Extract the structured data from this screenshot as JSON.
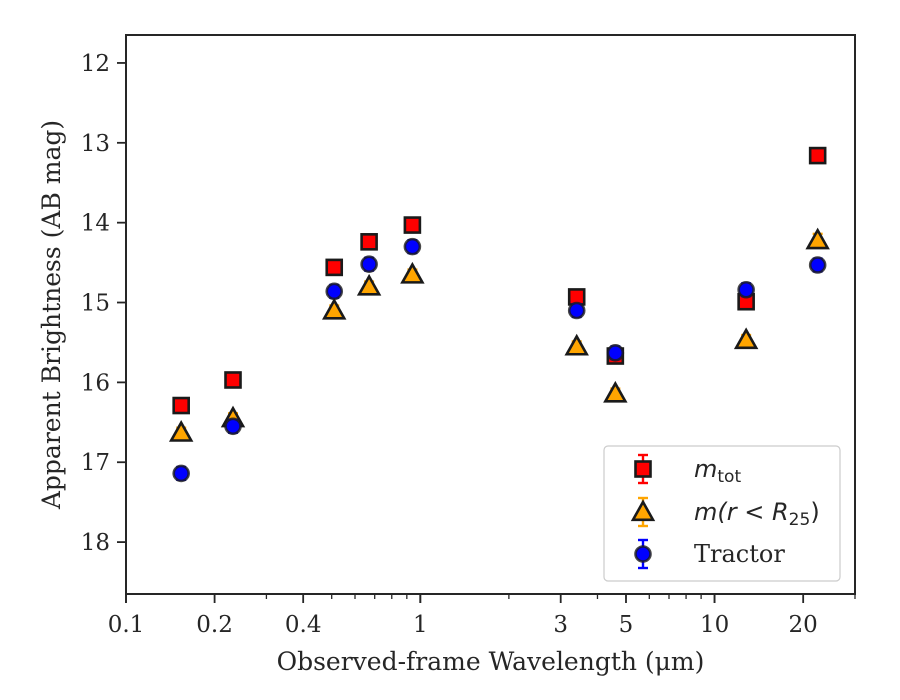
{
  "chart_data": {
    "type": "scatter",
    "title": "",
    "xlabel": "Observed-frame Wavelength (μm)",
    "ylabel": "Apparent Brightness (AB mag)",
    "xscale": "log",
    "xlim": [
      0.1,
      30
    ],
    "ylim": [
      18.65,
      11.65
    ],
    "y_inverted": true,
    "x_ticks": [
      {
        "value": 0.1,
        "label": "0.1"
      },
      {
        "value": 0.2,
        "label": "0.2"
      },
      {
        "value": 0.4,
        "label": "0.4"
      },
      {
        "value": 1,
        "label": "1"
      },
      {
        "value": 3,
        "label": "3"
      },
      {
        "value": 5,
        "label": "5"
      },
      {
        "value": 10,
        "label": "10"
      },
      {
        "value": 20,
        "label": "20"
      }
    ],
    "y_ticks": [
      {
        "value": 12,
        "label": "12"
      },
      {
        "value": 13,
        "label": "13"
      },
      {
        "value": 14,
        "label": "14"
      },
      {
        "value": 15,
        "label": "15"
      },
      {
        "value": 16,
        "label": "16"
      },
      {
        "value": 17,
        "label": "17"
      },
      {
        "value": 18,
        "label": "18"
      }
    ],
    "legend_position": "lower-right",
    "series": [
      {
        "key": "mtot",
        "marker": "square",
        "color": "#ff0000",
        "edge_color": "#1a1a1a",
        "legend": {
          "base": "m",
          "sub": "tot",
          "tail": ""
        },
        "points": [
          {
            "x": 0.154,
            "y": 16.29,
            "err": 0.03
          },
          {
            "x": 0.231,
            "y": 15.97,
            "err": 0.03
          },
          {
            "x": 0.51,
            "y": 14.56,
            "err": 0.03
          },
          {
            "x": 0.67,
            "y": 14.24,
            "err": 0.03
          },
          {
            "x": 0.94,
            "y": 14.03,
            "err": 0.03
          },
          {
            "x": 3.4,
            "y": 14.93,
            "err": 0.03
          },
          {
            "x": 4.6,
            "y": 15.67,
            "err": 0.05
          },
          {
            "x": 12.8,
            "y": 14.99,
            "err": 0.05
          },
          {
            "x": 22.4,
            "y": 13.16,
            "err": 0.03
          }
        ]
      },
      {
        "key": "mr25",
        "marker": "triangle",
        "color": "#ffa500",
        "edge_color": "#1a1a1a",
        "legend": {
          "base": "m",
          "sub": "25",
          "tail": "(r < R"
        },
        "points": [
          {
            "x": 0.154,
            "y": 16.63,
            "err": 0.03
          },
          {
            "x": 0.231,
            "y": 16.45,
            "err": 0.03
          },
          {
            "x": 0.51,
            "y": 15.1,
            "err": 0.03
          },
          {
            "x": 0.67,
            "y": 14.8,
            "err": 0.03
          },
          {
            "x": 0.94,
            "y": 14.65,
            "err": 0.03
          },
          {
            "x": 3.4,
            "y": 15.55,
            "err": 0.03
          },
          {
            "x": 4.6,
            "y": 16.14,
            "err": 0.03
          },
          {
            "x": 12.8,
            "y": 15.47,
            "err": 0.05
          },
          {
            "x": 22.4,
            "y": 14.22,
            "err": 0.08
          }
        ]
      },
      {
        "key": "tractor",
        "marker": "circle",
        "color": "#0000ff",
        "edge_color": "#1a1a1a",
        "legend": {
          "base": "Tractor",
          "sub": "",
          "tail": ""
        },
        "points": [
          {
            "x": 0.154,
            "y": 17.14,
            "err": 0.08
          },
          {
            "x": 0.231,
            "y": 16.55,
            "err": 0.08
          },
          {
            "x": 0.51,
            "y": 14.86,
            "err": 0.08
          },
          {
            "x": 0.67,
            "y": 14.52,
            "err": 0.08
          },
          {
            "x": 0.94,
            "y": 14.3,
            "err": 0.08
          },
          {
            "x": 3.4,
            "y": 15.1,
            "err": 0.08
          },
          {
            "x": 4.6,
            "y": 15.63,
            "err": 0.08
          },
          {
            "x": 12.8,
            "y": 14.84,
            "err": 0.08
          },
          {
            "x": 22.4,
            "y": 14.53,
            "err": 0.08
          }
        ]
      }
    ]
  }
}
